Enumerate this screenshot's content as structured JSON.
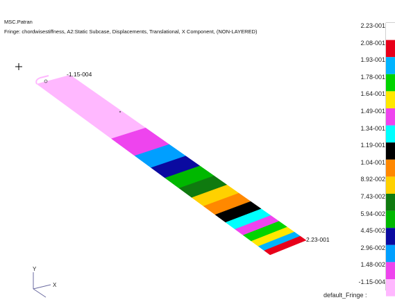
{
  "header": {
    "title": "MSC.Patran",
    "fringe": "Fringe: chordwisestiffness, A2:Static Subcase, Displacements, Translational, X Component, (NON-LAYERED)"
  },
  "annotations": {
    "min_label": "-1.15-004",
    "max_label": "2.23-001"
  },
  "axes": {
    "y": "Y",
    "x": "X"
  },
  "legend": {
    "name": "default_Fringe :",
    "values": [
      "2.23-001",
      "2.08-001",
      "1.93-001",
      "1.78-001",
      "1.64-001",
      "1.49-001",
      "1.34-001",
      "1.19-001",
      "1.04-001",
      "8.92-002",
      "7.43-002",
      "5.94-002",
      "4.45-002",
      "2.96-002",
      "1.48-002",
      "-1.15-004"
    ],
    "colors": [
      "#ffffff",
      "#e8001a",
      "#00b4ff",
      "#00d400",
      "#ffe800",
      "#ee44ee",
      "#00ffff",
      "#000000",
      "#ff8800",
      "#ffd100",
      "#0f7a0f",
      "#00b800",
      "#0a0aa0",
      "#009fff",
      "#ee44ee",
      "#ffb8ff"
    ]
  },
  "strip_colors": [
    "#ffb8ff",
    "#ee44ee",
    "#009fff",
    "#0a0aa0",
    "#00b800",
    "#0f7a0f",
    "#ffd100",
    "#ff8800",
    "#000000",
    "#00ffff",
    "#ee44ee",
    "#00d400",
    "#ffe800",
    "#00b4ff",
    "#e8001a"
  ]
}
